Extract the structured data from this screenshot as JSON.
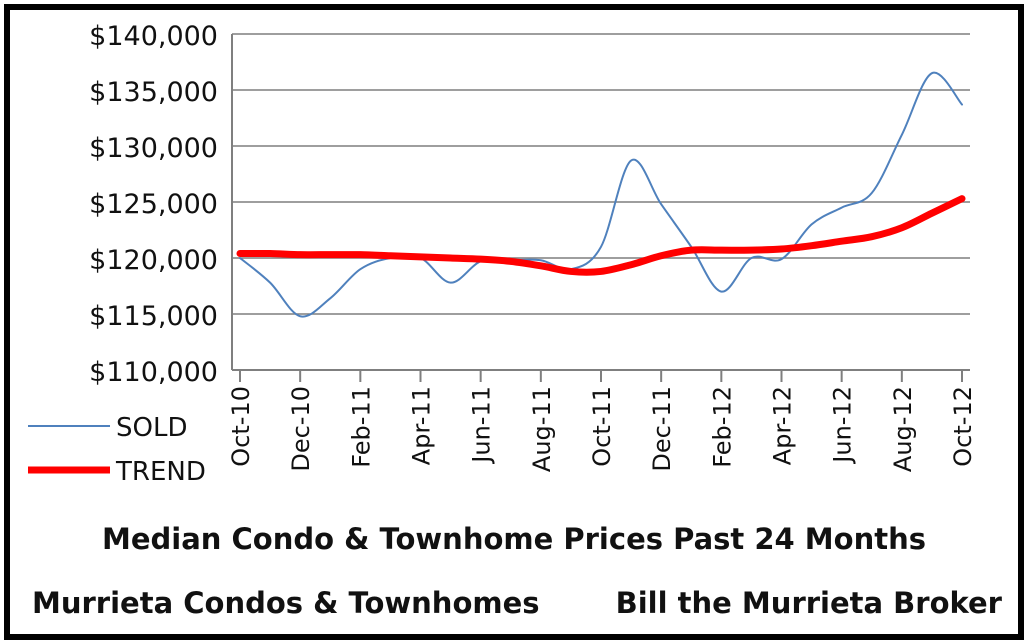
{
  "chart_data": {
    "type": "line",
    "title": "Median Condo & Townhome Prices Past 24 Months",
    "subtitle_left": "Murrieta  Condos & Townhomes",
    "subtitle_right": "Bill the Murrieta Broker",
    "x": [
      "Oct-10",
      "Nov-10",
      "Dec-10",
      "Jan-11",
      "Feb-11",
      "Mar-11",
      "Apr-11",
      "May-11",
      "Jun-11",
      "Jul-11",
      "Aug-11",
      "Sep-11",
      "Oct-11",
      "Nov-11",
      "Dec-11",
      "Jan-12",
      "Feb-12",
      "Mar-12",
      "Apr-12",
      "May-12",
      "Jun-12",
      "Jul-12",
      "Aug-12",
      "Sep-12",
      "Oct-12"
    ],
    "xtick_labels": [
      "Oct-10",
      "Dec-10",
      "Feb-11",
      "Apr-11",
      "Jun-11",
      "Aug-11",
      "Oct-11",
      "Dec-11",
      "Feb-12",
      "Apr-12",
      "Jun-12",
      "Aug-12",
      "Oct-12"
    ],
    "ylim": [
      110000,
      140000
    ],
    "ytick_labels": [
      "$110,000",
      "$115,000",
      "$120,000",
      "$125,000",
      "$130,000",
      "$135,000",
      "$140,000"
    ],
    "grid": true,
    "legend_position": "bottom-left",
    "series": [
      {
        "name": "SOLD",
        "color": "#4f81bd",
        "values": [
          120000,
          117800,
          114800,
          116400,
          119000,
          120000,
          120000,
          117800,
          119700,
          119800,
          119800,
          119000,
          121000,
          128700,
          124800,
          121000,
          117000,
          120000,
          119900,
          123000,
          124500,
          125800,
          131000,
          136500,
          133700
        ]
      },
      {
        "name": "TREND",
        "color": "#ff0000",
        "values": [
          120400,
          120400,
          120300,
          120300,
          120300,
          120200,
          120100,
          120000,
          119900,
          119700,
          119300,
          118800,
          118800,
          119400,
          120200,
          120700,
          120700,
          120700,
          120800,
          121100,
          121500,
          121900,
          122700,
          124000,
          125300
        ]
      }
    ]
  }
}
